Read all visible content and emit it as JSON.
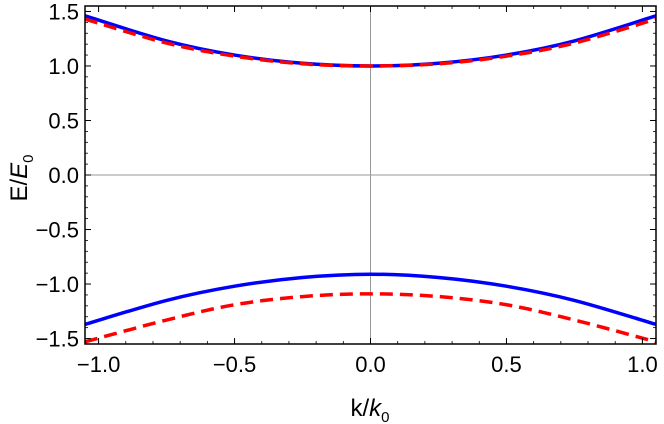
{
  "chart_data": {
    "type": "line",
    "xlabel": {
      "main": "k/",
      "var": "k",
      "sub": "0"
    },
    "ylabel": {
      "main": "E/",
      "var": "E",
      "sub": "0"
    },
    "xlim": [
      -1.05,
      1.05
    ],
    "ylim": [
      -1.55,
      1.55
    ],
    "x_ticks": [
      -1.0,
      -0.5,
      0.0,
      0.5,
      1.0
    ],
    "x_tick_labels": [
      "−1.0",
      "−0.5",
      "0.0",
      "0.5",
      "1.0"
    ],
    "y_ticks": [
      1.5,
      1.0,
      0.5,
      0.0,
      -0.5,
      -1.0,
      -1.5
    ],
    "y_tick_labels": [
      "1.5",
      "1.0",
      "0.5",
      "0.0",
      "−0.5",
      "−1.0",
      "−1.5"
    ],
    "grid": false,
    "zero_axes": true,
    "frame": true,
    "legend": "none",
    "series": [
      {
        "color": "#0000ff",
        "style": "solid",
        "x": [
          -1.05,
          -0.75,
          -0.5,
          -0.25,
          0.0,
          0.25,
          0.5,
          0.75,
          1.05
        ],
        "y": [
          1.46,
          1.23,
          1.1,
          1.025,
          1.0,
          1.025,
          1.1,
          1.23,
          1.46
        ]
      },
      {
        "color": "#ff0000",
        "style": "dashed",
        "x": [
          -1.05,
          -0.75,
          -0.5,
          -0.25,
          0.0,
          0.25,
          0.5,
          0.75,
          1.05
        ],
        "y": [
          1.43,
          1.21,
          1.09,
          1.02,
          1.0,
          1.02,
          1.09,
          1.21,
          1.43
        ]
      },
      {
        "color": "#0000ff",
        "style": "solid",
        "x": [
          -1.05,
          -0.75,
          -0.5,
          -0.25,
          0.0,
          0.25,
          0.5,
          0.75,
          1.05
        ],
        "y": [
          -1.37,
          -1.15,
          -1.02,
          -0.94,
          -0.91,
          -0.94,
          -1.02,
          -1.15,
          -1.37
        ]
      },
      {
        "color": "#ff0000",
        "style": "dashed",
        "x": [
          -1.05,
          -0.75,
          -0.5,
          -0.25,
          0.0,
          0.25,
          0.5,
          0.75,
          1.05
        ],
        "y": [
          -1.53,
          -1.33,
          -1.19,
          -1.115,
          -1.09,
          -1.115,
          -1.19,
          -1.33,
          -1.53
        ]
      }
    ]
  }
}
